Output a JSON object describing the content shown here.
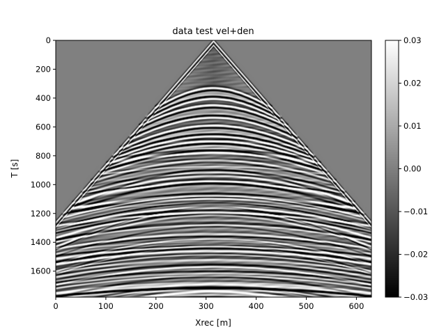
{
  "chart_data": {
    "type": "heatmap",
    "title": "data test vel+den",
    "xlabel": "Xrec [m]",
    "ylabel": "T [s]",
    "xlim": [
      0,
      630
    ],
    "ylim": [
      1780,
      0
    ],
    "x_ticks": [
      0,
      100,
      200,
      300,
      400,
      500,
      600
    ],
    "y_ticks": [
      0,
      200,
      400,
      600,
      800,
      1000,
      1200,
      1400,
      1600
    ],
    "colormap": "gray",
    "colorbar": {
      "vmin": -0.03,
      "vmax": 0.03,
      "ticks": [
        "0.03",
        "0.02",
        "0.01",
        "0.00",
        "−0.01",
        "−0.02",
        "−0.03"
      ],
      "tick_values": [
        0.03,
        0.02,
        0.01,
        0.0,
        -0.01,
        -0.02,
        -0.03
      ]
    },
    "features": {
      "source_x": 315,
      "direct_wave_apex_t": 0,
      "direct_wave_slope_ms_per_m": 4.0,
      "background_value": 0.0,
      "reflections_apex_t": [
        330,
        390,
        450,
        520,
        590,
        650,
        700,
        760,
        830,
        900,
        980,
        1060,
        1160,
        1260,
        1340,
        1440,
        1520,
        1600,
        1680
      ],
      "reflection_velocity_m_per_ms": [
        0.35,
        0.36,
        0.38,
        0.39,
        0.4,
        0.42,
        0.43,
        0.45,
        0.47,
        0.48,
        0.5,
        0.52,
        0.54,
        0.56,
        0.57,
        0.58,
        0.6,
        0.62,
        0.64
      ]
    }
  }
}
